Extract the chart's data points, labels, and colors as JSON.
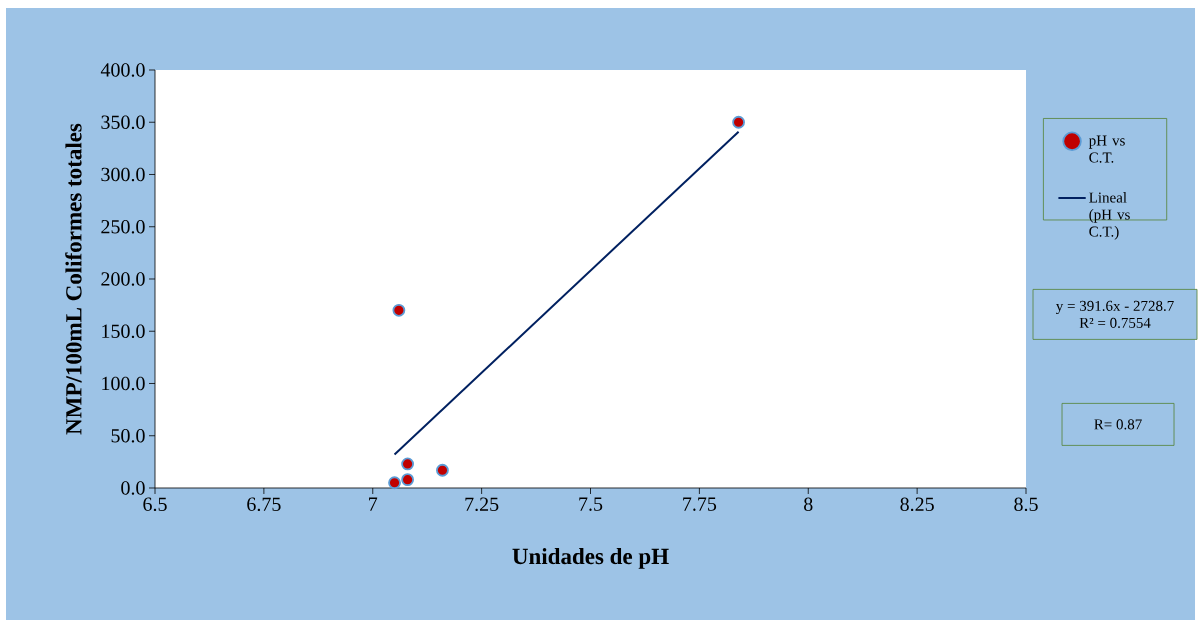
{
  "chart_data": {
    "type": "scatter",
    "xlabel": "Unidades de pH",
    "ylabel": "NMP/100mL  Coliformes totales",
    "series": [
      {
        "name": "pH vs C.T.",
        "color": "#c00000",
        "marker": "circle",
        "x": [
          7.05,
          7.06,
          7.08,
          7.08,
          7.16,
          7.84
        ],
        "values": [
          5,
          170,
          23,
          8,
          17,
          350
        ]
      },
      {
        "name": "Lineal (pH vs C.T.)",
        "type": "line",
        "color": "#002060",
        "marker": "none",
        "line_style": "solid",
        "x": [
          7.05,
          7.84
        ],
        "values": [
          32,
          341
        ]
      }
    ],
    "xlim": [
      6.5,
      8.5
    ],
    "ylim": [
      0,
      400
    ],
    "xticks": [
      6.5,
      6.75,
      7,
      7.25,
      7.5,
      7.75,
      8,
      8.25,
      8.5
    ],
    "yticks": [
      {
        "value": 0,
        "label": "0.0"
      },
      {
        "value": 50,
        "label": "50.0"
      },
      {
        "value": 100,
        "label": "100.0"
      },
      {
        "value": 150,
        "label": "150.0"
      },
      {
        "value": 200,
        "label": "200.0"
      },
      {
        "value": 250,
        "label": "250.0"
      },
      {
        "value": 300,
        "label": "300.0"
      },
      {
        "value": 350,
        "label": "350.0"
      },
      {
        "value": 400,
        "label": "400.0"
      }
    ],
    "grid": false,
    "legend": "right",
    "annotations": [
      "y = 391.6x - 2728.7",
      "R² = 0.7554",
      "R= 0.87"
    ]
  }
}
